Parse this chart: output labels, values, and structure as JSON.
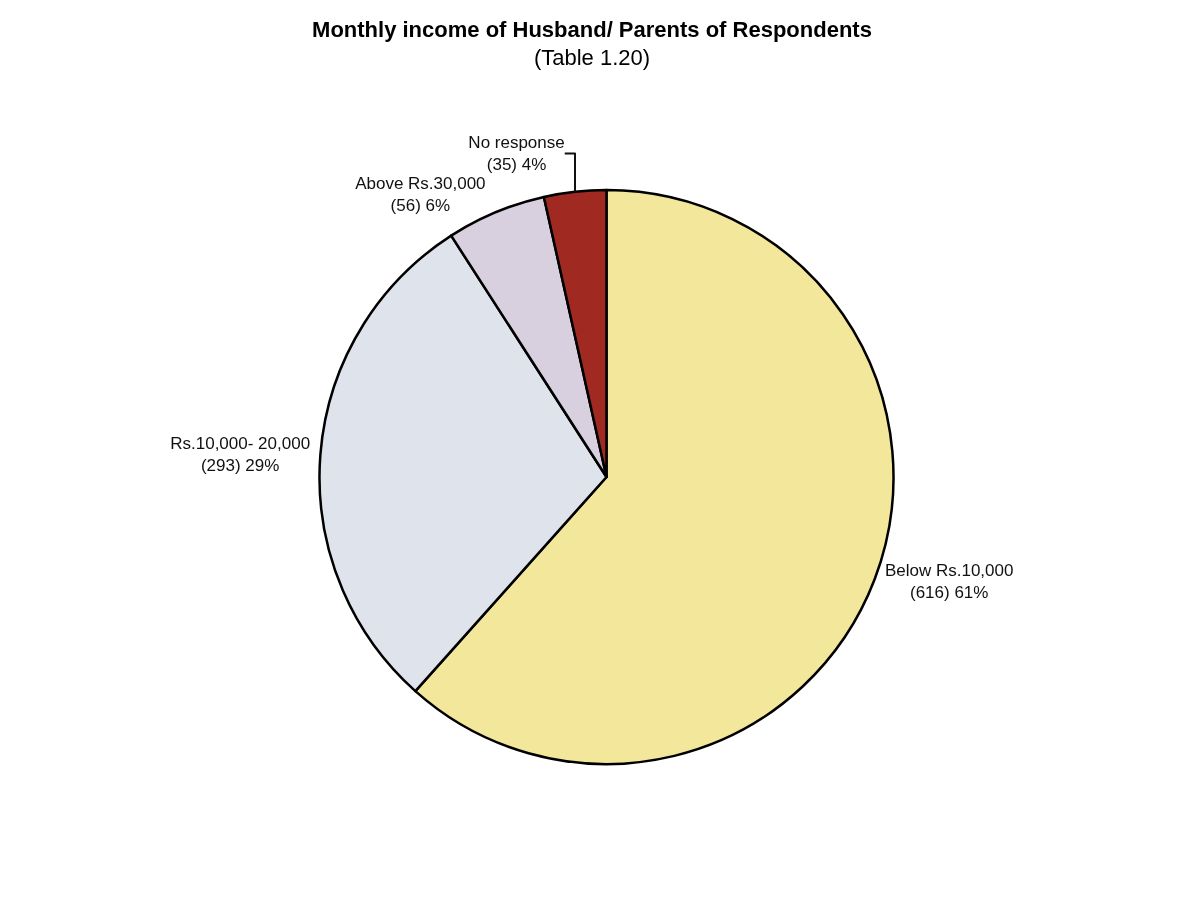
{
  "chart_data": {
    "type": "pie",
    "title": "Monthly income of Husband/ Parents of Respondents",
    "subtitle": "(Table 1.20)",
    "categories": [
      "Below Rs.10,000",
      "Rs.10,000- 20,000",
      "Above Rs.30,000",
      "No response"
    ],
    "values": [
      616,
      293,
      56,
      35
    ],
    "value_labels": [
      "(616) 61%",
      "(293) 29%",
      "(56) 6%",
      "(35) 4%"
    ],
    "colors": [
      "#f3e79b",
      "#dfe4ec",
      "#d8cfdf",
      "#a02a22"
    ],
    "legend": false
  }
}
